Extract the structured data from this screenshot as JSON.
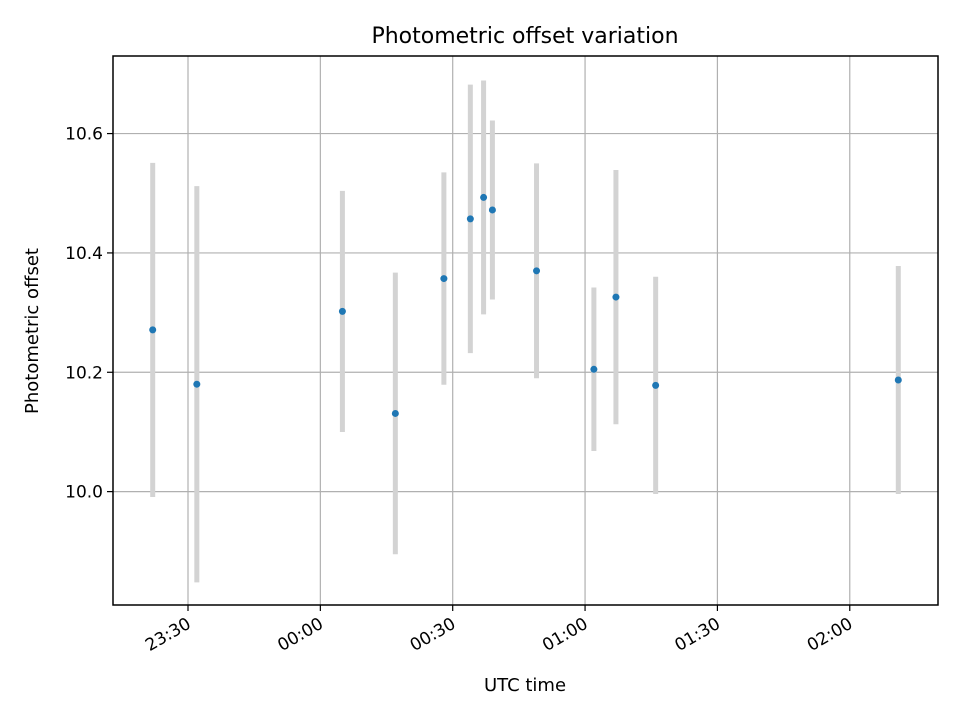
{
  "chart_data": {
    "type": "scatter",
    "title": "Photometric offset variation",
    "xlabel": "UTC time",
    "ylabel": "Photometric offset",
    "x_ticks": [
      "23:30",
      "00:00",
      "00:30",
      "01:00",
      "01:30",
      "02:00"
    ],
    "x_tick_minutes": [
      -30,
      0,
      30,
      60,
      90,
      120
    ],
    "xlim_minutes": [
      -47,
      140
    ],
    "y_ticks": [
      "10.0",
      "10.2",
      "10.4",
      "10.6"
    ],
    "y_tick_values": [
      10.0,
      10.2,
      10.4,
      10.6
    ],
    "ylim": [
      9.81,
      10.73
    ],
    "grid": true,
    "colors": {
      "point": "#1f77b4",
      "errorbar": "#d3d3d3",
      "grid": "#b0b0b0"
    },
    "series": [
      {
        "points": [
          {
            "x": "23:22",
            "y": 10.271,
            "err": 0.28
          },
          {
            "x": "23:32",
            "y": 10.18,
            "err": 0.332
          },
          {
            "x": "00:05",
            "y": 10.302,
            "err": 0.202
          },
          {
            "x": "00:17",
            "y": 10.131,
            "err": 0.236
          },
          {
            "x": "00:28",
            "y": 10.357,
            "err": 0.178
          },
          {
            "x": "00:34",
            "y": 10.457,
            "err": 0.225
          },
          {
            "x": "00:37",
            "y": 10.493,
            "err": 0.196
          },
          {
            "x": "00:39",
            "y": 10.472,
            "err": 0.15
          },
          {
            "x": "00:49",
            "y": 10.37,
            "err": 0.18
          },
          {
            "x": "01:02",
            "y": 10.205,
            "err": 0.137
          },
          {
            "x": "01:07",
            "y": 10.326,
            "err": 0.213
          },
          {
            "x": "01:16",
            "y": 10.178,
            "err": 0.182
          },
          {
            "x": "02:11",
            "y": 10.187,
            "err": 0.191
          }
        ]
      }
    ]
  }
}
